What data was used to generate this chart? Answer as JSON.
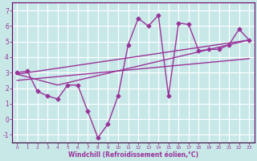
{
  "xlabel": "Windchill (Refroidissement éolien,°C)",
  "bg_color": "#c8e8e8",
  "grid_color": "#ffffff",
  "line_color": "#993399",
  "xlim": [
    -0.5,
    23.5
  ],
  "ylim": [
    -1.5,
    7.5
  ],
  "xticks": [
    0,
    1,
    2,
    3,
    4,
    5,
    6,
    7,
    8,
    9,
    10,
    11,
    12,
    13,
    14,
    15,
    16,
    17,
    18,
    19,
    20,
    21,
    22,
    23
  ],
  "yticks": [
    -1,
    0,
    1,
    2,
    3,
    4,
    5,
    6,
    7
  ],
  "series1_x": [
    0,
    1,
    2,
    3,
    4,
    5,
    6,
    7,
    8,
    9,
    10,
    11,
    12,
    13,
    14,
    15,
    16,
    17,
    18,
    19,
    20,
    21,
    22,
    23
  ],
  "series1_y": [
    3.0,
    3.1,
    1.8,
    1.5,
    1.3,
    2.2,
    2.2,
    0.5,
    -1.2,
    -0.3,
    1.5,
    4.8,
    6.5,
    6.0,
    6.7,
    1.5,
    6.2,
    6.1,
    4.4,
    4.5,
    4.5,
    4.8,
    5.8,
    5.1
  ],
  "trend1_x": [
    0,
    23
  ],
  "trend1_y": [
    2.5,
    3.9
  ],
  "trend2_x": [
    0,
    23
  ],
  "trend2_y": [
    2.9,
    5.1
  ],
  "trend3_x": [
    0,
    4,
    23
  ],
  "trend3_y": [
    2.9,
    2.2,
    5.1
  ],
  "marker": "D",
  "markersize": 2.5,
  "linewidth": 1.0,
  "tick_fontsize_x": 4.2,
  "tick_fontsize_y": 5.5,
  "xlabel_fontsize": 5.5
}
